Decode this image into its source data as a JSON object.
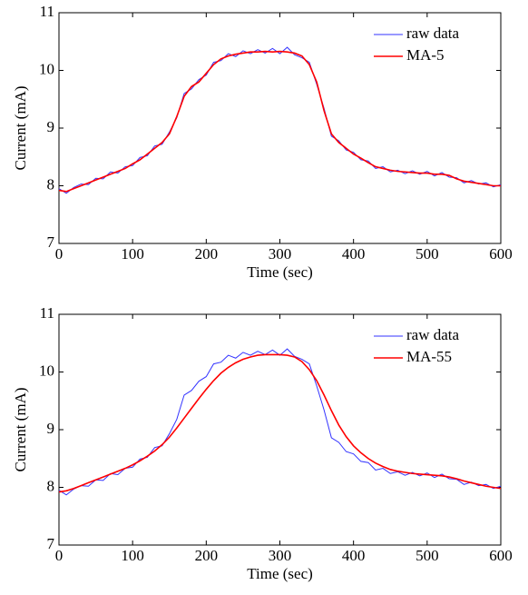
{
  "chart_data": [
    {
      "type": "line",
      "xlabel": "Time (sec)",
      "ylabel": "Current (mA)",
      "x": [
        0,
        10,
        20,
        30,
        40,
        50,
        60,
        70,
        80,
        90,
        100,
        110,
        120,
        130,
        140,
        150,
        160,
        170,
        180,
        190,
        200,
        210,
        220,
        230,
        240,
        250,
        260,
        270,
        280,
        290,
        300,
        310,
        320,
        330,
        340,
        350,
        360,
        370,
        380,
        390,
        400,
        410,
        420,
        430,
        440,
        450,
        460,
        470,
        480,
        490,
        500,
        510,
        520,
        530,
        540,
        550,
        560,
        570,
        580,
        590,
        600
      ],
      "series": [
        {
          "name": "raw data",
          "color": "#3333ff",
          "values": [
            7.95,
            7.87,
            7.97,
            8.03,
            8.02,
            8.13,
            8.12,
            8.24,
            8.22,
            8.33,
            8.35,
            8.49,
            8.52,
            8.69,
            8.72,
            8.93,
            9.18,
            9.6,
            9.68,
            9.84,
            9.92,
            10.14,
            10.17,
            10.29,
            10.24,
            10.34,
            10.29,
            10.36,
            10.3,
            10.38,
            10.29,
            10.4,
            10.27,
            10.22,
            10.14,
            9.76,
            9.34,
            8.86,
            8.78,
            8.62,
            8.58,
            8.45,
            8.43,
            8.3,
            8.33,
            8.24,
            8.27,
            8.21,
            8.26,
            8.2,
            8.25,
            8.17,
            8.23,
            8.15,
            8.14,
            8.05,
            8.09,
            8.03,
            8.05,
            7.98,
            8.02
          ]
        },
        {
          "name": "MA-5",
          "color": "#ff0000",
          "values": [
            7.92,
            7.9,
            7.95,
            8.0,
            8.05,
            8.1,
            8.15,
            8.2,
            8.25,
            8.3,
            8.38,
            8.45,
            8.55,
            8.65,
            8.75,
            8.9,
            9.2,
            9.55,
            9.72,
            9.8,
            9.95,
            10.1,
            10.2,
            10.25,
            10.28,
            10.3,
            10.32,
            10.32,
            10.33,
            10.32,
            10.33,
            10.32,
            10.3,
            10.25,
            10.1,
            9.8,
            9.3,
            8.9,
            8.75,
            8.65,
            8.55,
            8.48,
            8.4,
            8.33,
            8.3,
            8.27,
            8.25,
            8.24,
            8.23,
            8.22,
            8.22,
            8.2,
            8.2,
            8.18,
            8.12,
            8.08,
            8.06,
            8.04,
            8.02,
            8.0,
            8.0
          ]
        }
      ],
      "xlim": [
        0,
        600
      ],
      "xticks": [
        0,
        100,
        200,
        300,
        400,
        500,
        600
      ],
      "ylim": [
        7,
        11
      ],
      "yticks": [
        7,
        8,
        9,
        10,
        11
      ],
      "legend": "upper right"
    },
    {
      "type": "line",
      "xlabel": "Time (sec)",
      "ylabel": "Current (mA)",
      "x": [
        0,
        10,
        20,
        30,
        40,
        50,
        60,
        70,
        80,
        90,
        100,
        110,
        120,
        130,
        140,
        150,
        160,
        170,
        180,
        190,
        200,
        210,
        220,
        230,
        240,
        250,
        260,
        270,
        280,
        290,
        300,
        310,
        320,
        330,
        340,
        350,
        360,
        370,
        380,
        390,
        400,
        410,
        420,
        430,
        440,
        450,
        460,
        470,
        480,
        490,
        500,
        510,
        520,
        530,
        540,
        550,
        560,
        570,
        580,
        590,
        600
      ],
      "series": [
        {
          "name": "raw data",
          "color": "#3333ff",
          "values": [
            7.95,
            7.87,
            7.97,
            8.03,
            8.02,
            8.13,
            8.12,
            8.24,
            8.22,
            8.33,
            8.35,
            8.49,
            8.52,
            8.69,
            8.72,
            8.93,
            9.18,
            9.6,
            9.68,
            9.84,
            9.92,
            10.14,
            10.17,
            10.29,
            10.24,
            10.34,
            10.29,
            10.36,
            10.3,
            10.38,
            10.29,
            10.4,
            10.27,
            10.22,
            10.14,
            9.76,
            9.34,
            8.86,
            8.78,
            8.62,
            8.58,
            8.45,
            8.43,
            8.3,
            8.33,
            8.24,
            8.27,
            8.21,
            8.26,
            8.2,
            8.25,
            8.17,
            8.23,
            8.15,
            8.14,
            8.05,
            8.09,
            8.03,
            8.05,
            7.98,
            8.02
          ]
        },
        {
          "name": "MA-55",
          "color": "#ff0000",
          "values": [
            7.92,
            7.94,
            7.98,
            8.03,
            8.08,
            8.13,
            8.18,
            8.23,
            8.28,
            8.33,
            8.39,
            8.46,
            8.54,
            8.63,
            8.74,
            8.87,
            9.03,
            9.2,
            9.37,
            9.54,
            9.7,
            9.85,
            9.98,
            10.08,
            10.16,
            10.22,
            10.26,
            10.29,
            10.3,
            10.3,
            10.3,
            10.29,
            10.26,
            10.18,
            10.04,
            9.85,
            9.6,
            9.33,
            9.08,
            8.88,
            8.72,
            8.6,
            8.5,
            8.42,
            8.36,
            8.31,
            8.28,
            8.26,
            8.24,
            8.23,
            8.22,
            8.21,
            8.2,
            8.18,
            8.15,
            8.11,
            8.08,
            8.05,
            8.02,
            8.0,
            7.98
          ]
        }
      ],
      "xlim": [
        0,
        600
      ],
      "xticks": [
        0,
        100,
        200,
        300,
        400,
        500,
        600
      ],
      "ylim": [
        7,
        11
      ],
      "yticks": [
        7,
        8,
        9,
        10,
        11
      ],
      "legend": "upper right"
    }
  ]
}
